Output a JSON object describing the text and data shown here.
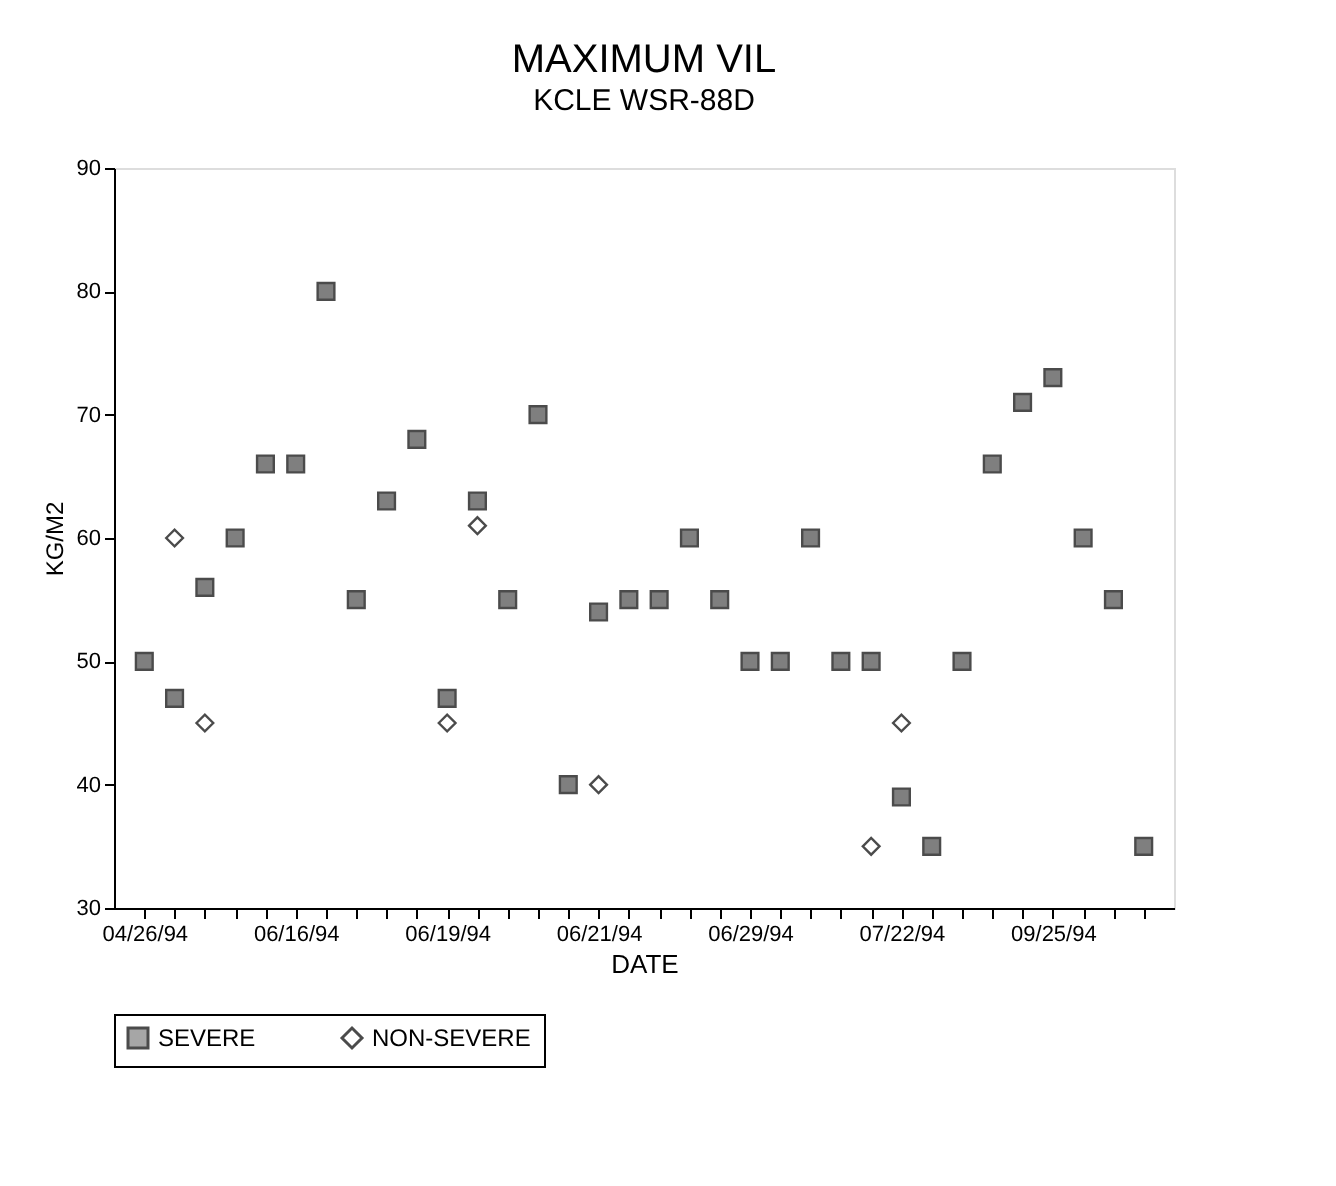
{
  "chart_data": {
    "type": "scatter",
    "title": "MAXIMUM VIL",
    "subtitle": "KCLE WSR-88D",
    "xlabel": "DATE",
    "ylabel": "KG/M2",
    "categories": [
      "04/26/94",
      null,
      null,
      null,
      null,
      "06/16/94",
      null,
      null,
      null,
      null,
      "06/19/94",
      null,
      null,
      null,
      null,
      "06/21/94",
      null,
      null,
      null,
      null,
      "06/29/94",
      null,
      null,
      null,
      null,
      "07/22/94",
      null,
      null,
      null,
      null,
      "09/25/94",
      null,
      null,
      null
    ],
    "series": [
      {
        "name": "SEVERE",
        "color": "#4a4a4a",
        "marker": "square",
        "values": [
          50,
          47,
          56,
          60,
          66,
          66,
          80,
          55,
          63,
          68,
          47,
          63,
          55,
          70,
          40,
          54,
          55,
          55,
          60,
          55,
          50,
          50,
          60,
          50,
          50,
          39,
          35,
          50,
          66,
          71,
          73,
          60,
          55,
          35
        ]
      },
      {
        "name": "NON-SEVERE",
        "color": "#000000",
        "marker": "diamond",
        "values": [
          null,
          60,
          45,
          null,
          null,
          null,
          null,
          null,
          null,
          null,
          45,
          61,
          null,
          null,
          null,
          40,
          null,
          null,
          null,
          null,
          null,
          null,
          null,
          null,
          35,
          45,
          null,
          null,
          null,
          null,
          null,
          null,
          null,
          null
        ]
      }
    ],
    "ylim": [
      30,
      90
    ],
    "yticks": [
      30,
      40,
      50,
      60,
      70,
      80,
      90
    ],
    "grid": false,
    "legend": "bottom"
  }
}
